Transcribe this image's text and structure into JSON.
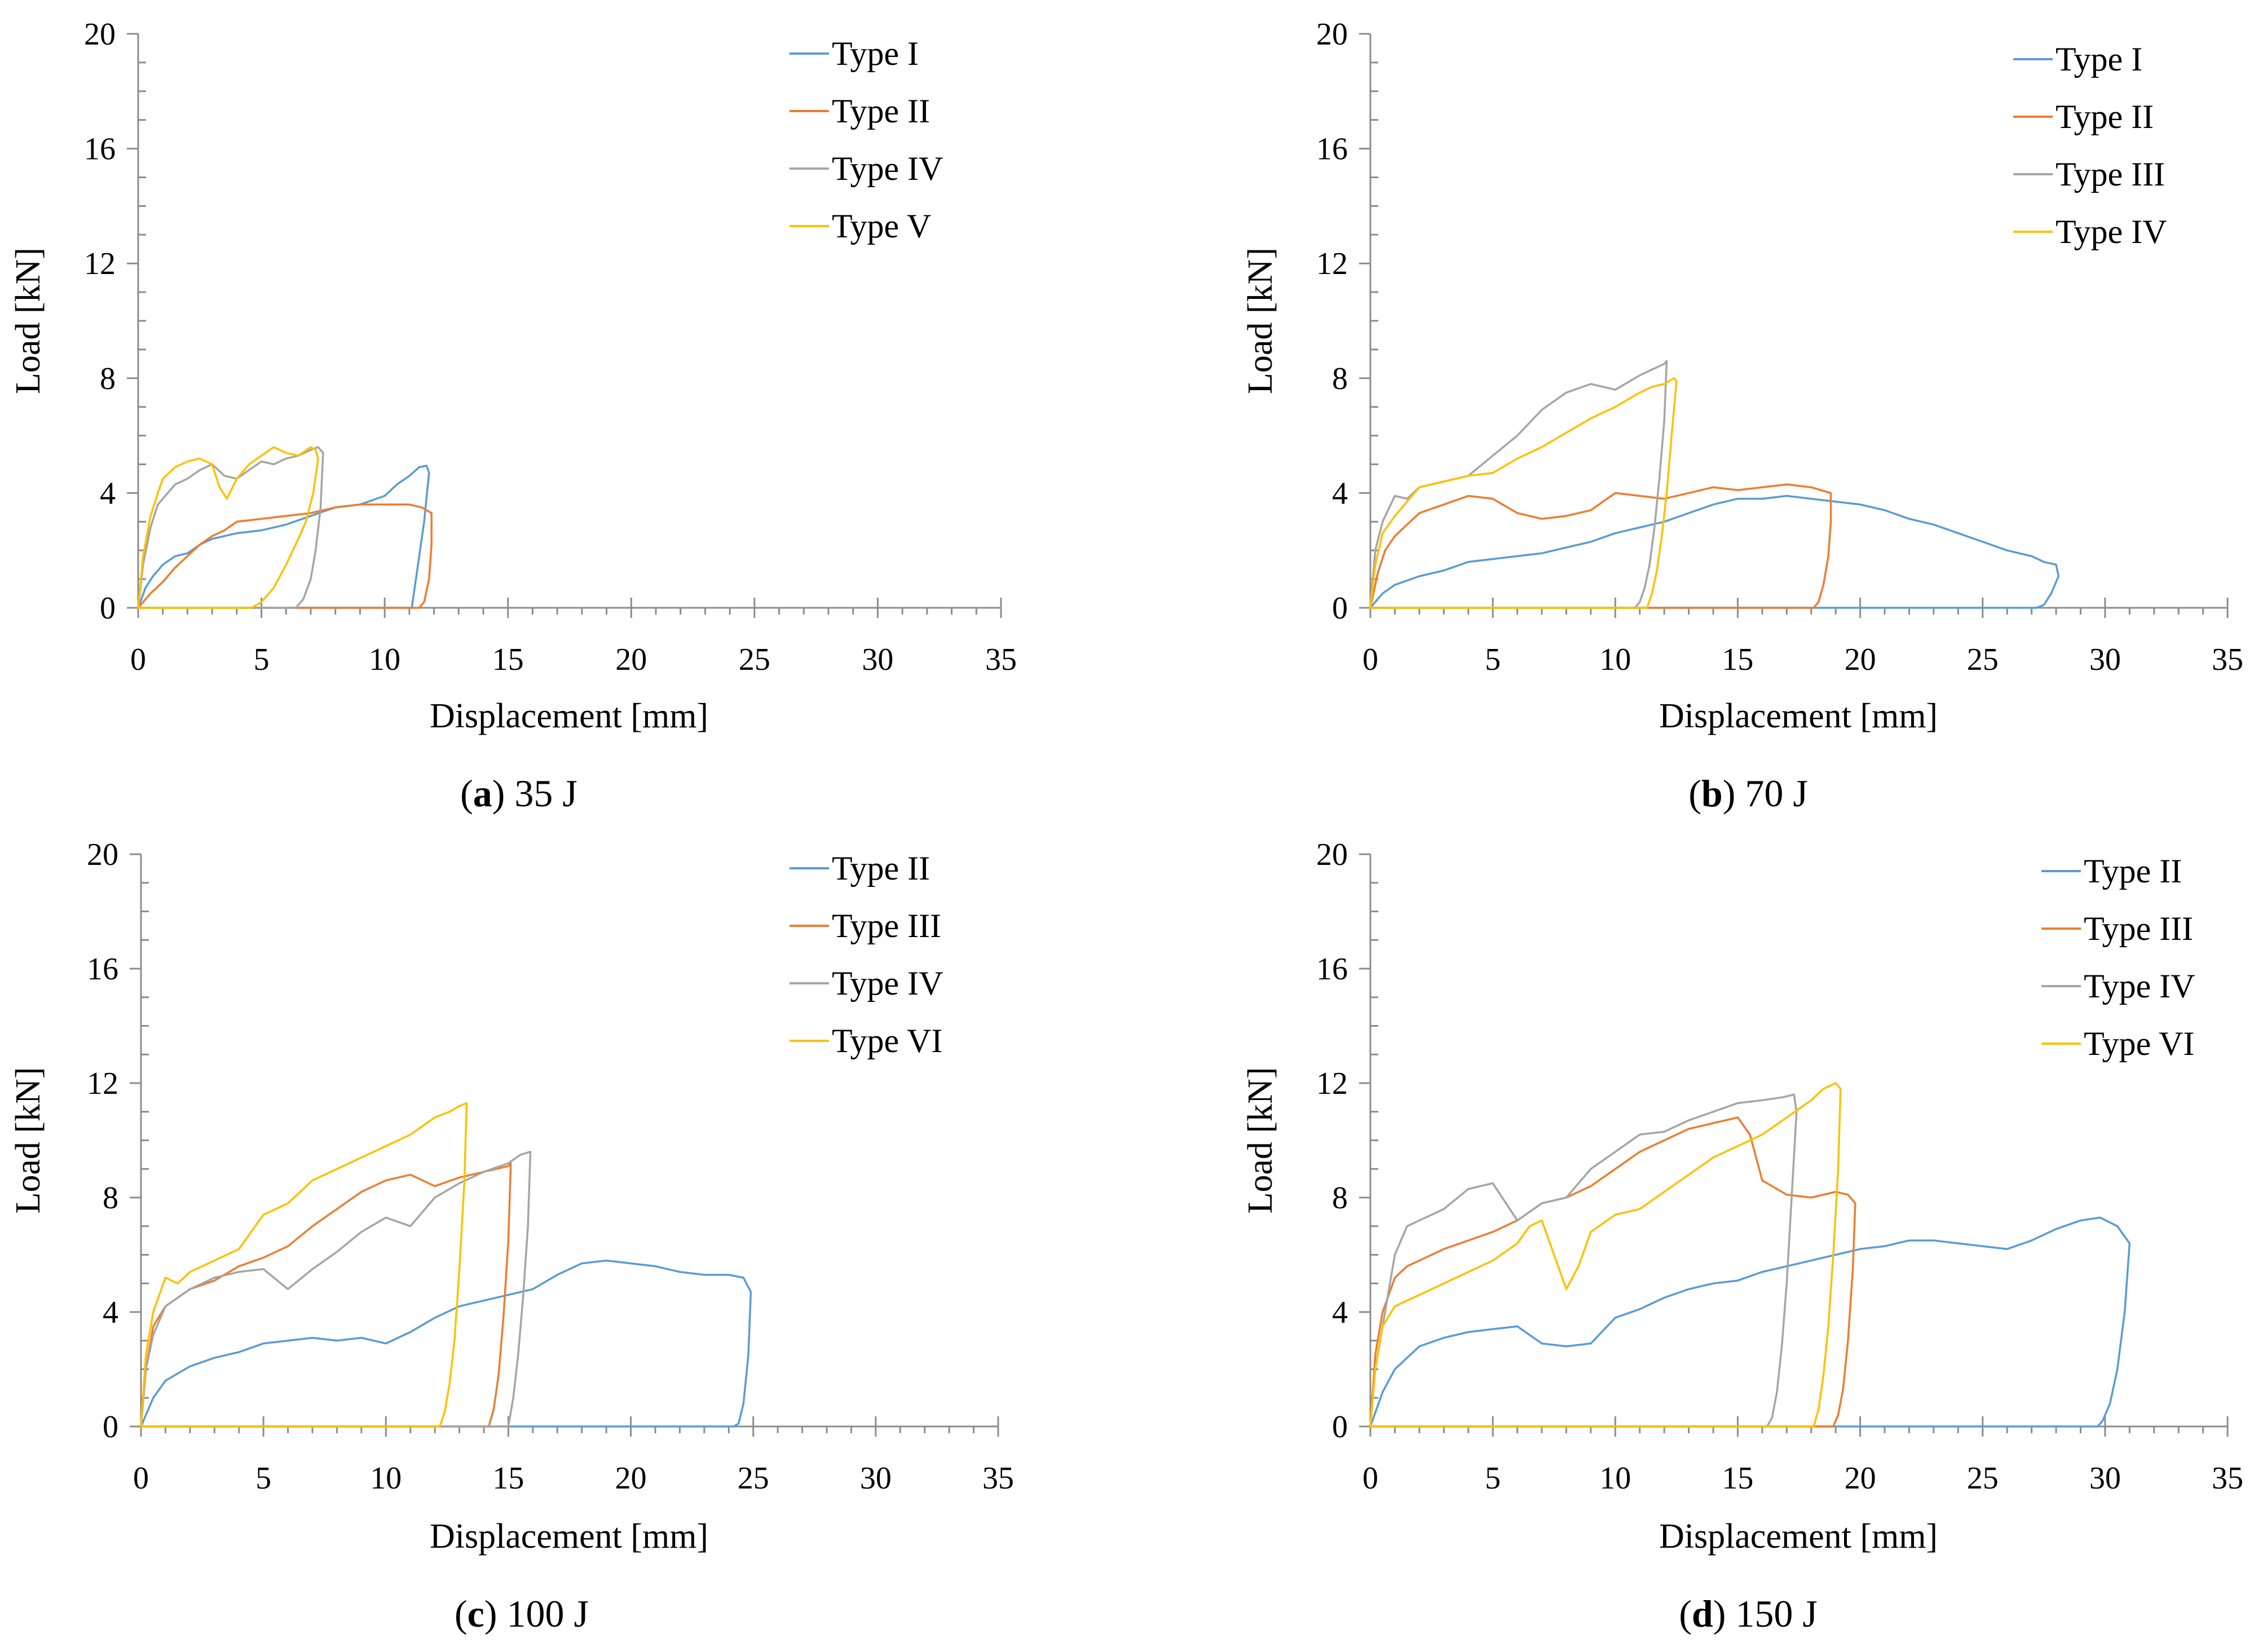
{
  "colors": {
    "series": [
      "#5B9BD5",
      "#ED7D31",
      "#A5A5A5",
      "#FFC000"
    ],
    "axis": "#8C8C8C"
  },
  "chart_data": [
    {
      "type": "line",
      "caption_letter": "a",
      "caption_rest": ") 35 J",
      "caption_open": "(",
      "xlabel": "Displacement [mm]",
      "ylabel": "Load [kN]",
      "xlim": [
        0,
        35
      ],
      "ylim": [
        0,
        20
      ],
      "xticks": [
        "0",
        "5",
        "10",
        "15",
        "20",
        "25",
        "30",
        "35"
      ],
      "yticks": [
        "0",
        "4",
        "8",
        "12",
        "16",
        "20"
      ],
      "legend_position": "top-right",
      "series": [
        {
          "name": "Type I",
          "x": [
            0,
            0.3,
            0.6,
            1,
            1.5,
            2,
            2.5,
            3,
            4,
            5,
            6,
            7,
            8,
            9,
            10,
            10.5,
            11,
            11.4,
            11.7,
            11.8,
            11.6,
            11.3,
            11.1,
            0
          ],
          "y": [
            0,
            0.7,
            1.1,
            1.5,
            1.8,
            1.9,
            2.2,
            2.4,
            2.6,
            2.7,
            2.9,
            3.2,
            3.5,
            3.6,
            3.9,
            4.3,
            4.6,
            4.9,
            4.95,
            4.7,
            3.0,
            1.2,
            0,
            0
          ]
        },
        {
          "name": "Type II",
          "x": [
            0,
            0.5,
            1,
            1.5,
            2,
            2.5,
            3,
            3.5,
            4,
            5,
            6,
            7,
            8,
            9,
            10,
            11,
            11.5,
            11.9,
            11.9,
            11.8,
            11.6,
            11.4,
            0
          ],
          "y": [
            0,
            0.5,
            0.9,
            1.4,
            1.8,
            2.2,
            2.5,
            2.7,
            3.0,
            3.1,
            3.2,
            3.3,
            3.5,
            3.6,
            3.6,
            3.6,
            3.5,
            3.3,
            2.2,
            1.0,
            0.2,
            0,
            0
          ]
        },
        {
          "name": "Type IV",
          "x": [
            0,
            0.2,
            0.5,
            0.8,
            1.2,
            1.5,
            2,
            2.5,
            3,
            3.5,
            4,
            4.5,
            5,
            5.5,
            6,
            6.5,
            7,
            7.3,
            7.5,
            7.4,
            7.2,
            7.0,
            6.7,
            6.4,
            6.1,
            0
          ],
          "y": [
            0,
            1.5,
            2.8,
            3.6,
            4.0,
            4.3,
            4.5,
            4.8,
            5.0,
            4.6,
            4.5,
            4.8,
            5.1,
            5.0,
            5.2,
            5.3,
            5.5,
            5.6,
            5.4,
            3.5,
            2.0,
            1.0,
            0.3,
            0,
            0,
            0
          ]
        },
        {
          "name": "Type V",
          "x": [
            0,
            0.2,
            0.5,
            0.8,
            1,
            1.5,
            2,
            2.5,
            3,
            3.3,
            3.6,
            4,
            4.5,
            5,
            5.5,
            6,
            6.5,
            7,
            7.2,
            7.3,
            7.1,
            6.8,
            6.5,
            6,
            5.5,
            5,
            4.6,
            0
          ],
          "y": [
            0,
            1.8,
            3.2,
            4.0,
            4.5,
            4.9,
            5.1,
            5.2,
            5.0,
            4.2,
            3.8,
            4.5,
            5.0,
            5.3,
            5.6,
            5.4,
            5.3,
            5.6,
            5.5,
            5.2,
            4.0,
            3.0,
            2.4,
            1.5,
            0.7,
            0.2,
            0,
            0
          ]
        }
      ]
    },
    {
      "type": "line",
      "caption_letter": "b",
      "caption_rest": ") 70 J",
      "caption_open": "(",
      "xlabel": "Displacement [mm]",
      "ylabel": "Load [kN]",
      "xlim": [
        0,
        35
      ],
      "ylim": [
        0,
        20
      ],
      "xticks": [
        "0",
        "5",
        "10",
        "15",
        "20",
        "25",
        "30",
        "35"
      ],
      "yticks": [
        "0",
        "4",
        "8",
        "12",
        "16",
        "20"
      ],
      "legend_position": "top-right",
      "series": [
        {
          "name": "Type I",
          "x": [
            0,
            0.5,
            1,
            2,
            3,
            4,
            5,
            6,
            7,
            8,
            9,
            10,
            11,
            12,
            13,
            14,
            15,
            16,
            17,
            18,
            19,
            20,
            21,
            22,
            23,
            24,
            25,
            26,
            27,
            27.5,
            28,
            28.1,
            27.8,
            27.5,
            27.2,
            0
          ],
          "y": [
            0,
            0.5,
            0.8,
            1.1,
            1.3,
            1.6,
            1.7,
            1.8,
            1.9,
            2.1,
            2.3,
            2.6,
            2.8,
            3.0,
            3.3,
            3.6,
            3.8,
            3.8,
            3.9,
            3.8,
            3.7,
            3.6,
            3.4,
            3.1,
            2.9,
            2.6,
            2.3,
            2.0,
            1.8,
            1.6,
            1.5,
            1.1,
            0.5,
            0.1,
            0,
            0
          ]
        },
        {
          "name": "Type II",
          "x": [
            0,
            0.3,
            0.6,
            1,
            1.5,
            2,
            3,
            4,
            5,
            6,
            7,
            8,
            9,
            10,
            11,
            12,
            13,
            14,
            15,
            16,
            17,
            18,
            18.8,
            18.8,
            18.7,
            18.5,
            18.3,
            18.1,
            0
          ],
          "y": [
            0,
            1.2,
            2.0,
            2.5,
            2.9,
            3.3,
            3.6,
            3.9,
            3.8,
            3.3,
            3.1,
            3.2,
            3.4,
            4.0,
            3.9,
            3.8,
            4.0,
            4.2,
            4.1,
            4.2,
            4.3,
            4.2,
            4.0,
            3.0,
            1.8,
            0.8,
            0.2,
            0,
            0
          ]
        },
        {
          "name": "Type III",
          "x": [
            0,
            0.2,
            0.5,
            1,
            1.5,
            2,
            3,
            4,
            5,
            6,
            7,
            8,
            9,
            10,
            11,
            11.5,
            12,
            12.1,
            12.0,
            11.8,
            11.6,
            11.4,
            11.2,
            11.0,
            10.8,
            0
          ],
          "y": [
            0,
            2.0,
            3.0,
            3.9,
            3.8,
            4.2,
            4.4,
            4.6,
            5.3,
            6.0,
            6.9,
            7.5,
            7.8,
            7.6,
            8.1,
            8.3,
            8.5,
            8.6,
            6.5,
            4.5,
            2.8,
            1.5,
            0.7,
            0.2,
            0,
            0
          ]
        },
        {
          "name": "Type IV",
          "x": [
            0,
            0.2,
            0.5,
            1,
            1.5,
            2,
            3,
            4,
            5,
            6,
            7,
            8,
            9,
            10,
            11,
            11.5,
            12,
            12.4,
            12.5,
            12.3,
            12.1,
            11.9,
            11.7,
            11.5,
            11.3,
            0
          ],
          "y": [
            0,
            1.5,
            2.6,
            3.2,
            3.7,
            4.2,
            4.4,
            4.6,
            4.7,
            5.2,
            5.6,
            6.1,
            6.6,
            7.0,
            7.5,
            7.7,
            7.8,
            8.0,
            7.9,
            6.0,
            4.0,
            2.5,
            1.3,
            0.5,
            0,
            0
          ]
        }
      ]
    },
    {
      "type": "line",
      "caption_letter": "c",
      "caption_rest": ") 100 J",
      "caption_open": "(",
      "xlabel": "Displacement [mm]",
      "ylabel": "Load [kN]",
      "xlim": [
        0,
        35
      ],
      "ylim": [
        0,
        20
      ],
      "xticks": [
        "0",
        "5",
        "10",
        "15",
        "20",
        "25",
        "30",
        "35"
      ],
      "yticks": [
        "0",
        "4",
        "8",
        "12",
        "16",
        "20"
      ],
      "legend_position": "top-right",
      "series": [
        {
          "name": "Type II",
          "x": [
            0,
            0.5,
            1,
            2,
            3,
            4,
            5,
            6,
            7,
            8,
            9,
            10,
            11,
            12,
            13,
            14,
            15,
            16,
            17,
            18,
            19,
            20,
            21,
            22,
            23,
            24,
            24.6,
            24.9,
            24.8,
            24.6,
            24.4,
            24.2,
            0
          ],
          "y": [
            0,
            1.0,
            1.6,
            2.1,
            2.4,
            2.6,
            2.9,
            3.0,
            3.1,
            3.0,
            3.1,
            2.9,
            3.3,
            3.8,
            4.2,
            4.4,
            4.6,
            4.8,
            5.3,
            5.7,
            5.8,
            5.7,
            5.6,
            5.4,
            5.3,
            5.3,
            5.2,
            4.7,
            2.5,
            0.8,
            0.1,
            0,
            0
          ]
        },
        {
          "name": "Type III",
          "x": [
            0,
            0.2,
            0.5,
            1,
            2,
            3,
            4,
            5,
            6,
            7,
            8,
            9,
            10,
            11,
            12,
            13,
            14,
            14.5,
            15,
            15.1,
            15.0,
            14.8,
            14.6,
            14.4,
            14.2,
            0
          ],
          "y": [
            0,
            2.0,
            3.5,
            4.2,
            4.8,
            5.1,
            5.6,
            5.9,
            6.3,
            7.0,
            7.6,
            8.2,
            8.6,
            8.8,
            8.4,
            8.7,
            8.9,
            9.0,
            9.1,
            9.2,
            6.5,
            3.8,
            1.8,
            0.6,
            0,
            0
          ]
        },
        {
          "name": "Type IV",
          "x": [
            0,
            0.2,
            0.5,
            1,
            2,
            3,
            4,
            5,
            6,
            7,
            8,
            9,
            10,
            11,
            12,
            13,
            14,
            15,
            15.5,
            15.9,
            15.8,
            15.6,
            15.4,
            15.2,
            15.0,
            0
          ],
          "y": [
            0,
            2.0,
            3.2,
            4.2,
            4.8,
            5.2,
            5.4,
            5.5,
            4.8,
            5.5,
            6.1,
            6.8,
            7.3,
            7.0,
            8.0,
            8.5,
            8.9,
            9.2,
            9.5,
            9.6,
            7.0,
            4.5,
            2.5,
            1.0,
            0,
            0
          ]
        },
        {
          "name": "Type VI",
          "x": [
            0,
            0.2,
            0.5,
            1,
            1.5,
            2,
            3,
            4,
            5,
            6,
            7,
            8,
            9,
            10,
            11,
            12,
            12.6,
            13,
            13.3,
            13.2,
            13.0,
            12.8,
            12.6,
            12.4,
            12.2,
            0
          ],
          "y": [
            0,
            2.5,
            4.0,
            5.2,
            5.0,
            5.4,
            5.8,
            6.2,
            7.4,
            7.8,
            8.6,
            9.0,
            9.4,
            9.8,
            10.2,
            10.8,
            11.0,
            11.2,
            11.3,
            8.5,
            5.5,
            3.0,
            1.5,
            0.5,
            0,
            0
          ]
        }
      ]
    },
    {
      "type": "line",
      "caption_letter": "d",
      "caption_rest": ") 150 J",
      "caption_open": "(",
      "xlabel": "Displacement [mm]",
      "ylabel": "Load [kN]",
      "xlim": [
        0,
        35
      ],
      "ylim": [
        0,
        20
      ],
      "xticks": [
        "0",
        "5",
        "10",
        "15",
        "20",
        "25",
        "30",
        "35"
      ],
      "yticks": [
        "0",
        "4",
        "8",
        "12",
        "16",
        "20"
      ],
      "legend_position": "top-right",
      "series": [
        {
          "name": "Type II",
          "x": [
            0,
            0.5,
            1,
            2,
            3,
            4,
            5,
            6,
            7,
            8,
            9,
            10,
            11,
            12,
            13,
            14,
            15,
            16,
            17,
            18,
            19,
            20,
            21,
            22,
            23,
            24,
            25,
            26,
            27,
            28,
            29,
            29.8,
            30.5,
            31,
            30.8,
            30.5,
            30.2,
            29.9,
            29.7,
            0
          ],
          "y": [
            0,
            1.2,
            2.0,
            2.8,
            3.1,
            3.3,
            3.4,
            3.5,
            2.9,
            2.8,
            2.9,
            3.8,
            4.1,
            4.5,
            4.8,
            5.0,
            5.1,
            5.4,
            5.6,
            5.8,
            6.0,
            6.2,
            6.3,
            6.5,
            6.5,
            6.4,
            6.3,
            6.2,
            6.5,
            6.9,
            7.2,
            7.3,
            7.0,
            6.4,
            4.0,
            2.0,
            0.8,
            0.2,
            0,
            0
          ]
        },
        {
          "name": "Type III",
          "x": [
            0,
            0.2,
            0.5,
            1,
            1.5,
            2,
            3,
            4,
            5,
            6,
            7,
            8,
            9,
            10,
            11,
            12,
            13,
            14,
            15,
            15.5,
            16,
            17,
            18,
            19,
            19.5,
            19.8,
            19.7,
            19.5,
            19.3,
            19.1,
            18.9,
            0
          ],
          "y": [
            0,
            2.5,
            4.0,
            5.2,
            5.6,
            5.8,
            6.2,
            6.5,
            6.8,
            7.2,
            7.8,
            8.0,
            8.4,
            9.0,
            9.6,
            10.0,
            10.4,
            10.6,
            10.8,
            10.2,
            8.6,
            8.1,
            8.0,
            8.2,
            8.1,
            7.8,
            5.5,
            3.0,
            1.3,
            0.4,
            0,
            0
          ]
        },
        {
          "name": "Type IV",
          "x": [
            0,
            0.2,
            0.5,
            1,
            1.5,
            2,
            3,
            4,
            5,
            6,
            7,
            8,
            9,
            10,
            11,
            12,
            13,
            14,
            15,
            16,
            16.8,
            17.3,
            17.4,
            17.2,
            17.0,
            16.8,
            16.6,
            16.4,
            16.2,
            0
          ],
          "y": [
            0,
            2.0,
            3.5,
            6.0,
            7.0,
            7.2,
            7.6,
            8.3,
            8.5,
            7.2,
            7.8,
            8.0,
            9.0,
            9.6,
            10.2,
            10.3,
            10.7,
            11.0,
            11.3,
            11.4,
            11.5,
            11.6,
            11.0,
            8.0,
            5.0,
            2.8,
            1.2,
            0.3,
            0,
            0
          ]
        },
        {
          "name": "Type VI",
          "x": [
            0,
            0.2,
            0.5,
            1,
            1.5,
            2,
            3,
            4,
            5,
            6,
            6.5,
            7,
            7.5,
            8,
            8.5,
            9,
            10,
            11,
            12,
            13,
            14,
            15,
            16,
            17,
            18,
            18.5,
            19,
            19.2,
            19.1,
            18.9,
            18.7,
            18.5,
            18.3,
            18.1,
            0
          ],
          "y": [
            0,
            2.0,
            3.5,
            4.2,
            4.4,
            4.6,
            5.0,
            5.4,
            5.8,
            6.4,
            7.0,
            7.2,
            6.0,
            4.8,
            5.6,
            6.8,
            7.4,
            7.6,
            8.2,
            8.8,
            9.4,
            9.8,
            10.2,
            10.8,
            11.4,
            11.8,
            12.0,
            11.8,
            9.0,
            6.0,
            3.5,
            1.8,
            0.6,
            0,
            0
          ]
        }
      ]
    }
  ]
}
